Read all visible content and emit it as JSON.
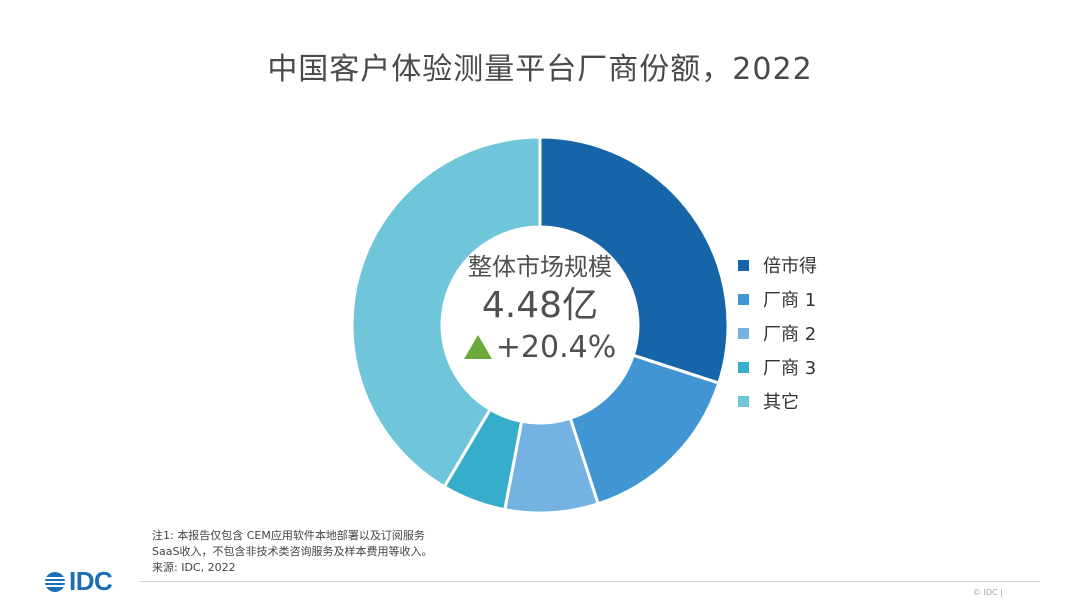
{
  "title": "中国客户体验测量平台厂商份额，2022",
  "center": {
    "label": "整体市场规模",
    "value": "4.48亿",
    "growth": "+20.4%",
    "growth_color": "#6aab3b"
  },
  "chart_data": {
    "type": "pie",
    "donut": true,
    "title": "中国客户体验测量平台厂商份额，2022",
    "legend_position": "right",
    "series": [
      {
        "name": "倍市得",
        "value": 30.0,
        "color": "#1565a8"
      },
      {
        "name": "厂商 1",
        "value": 15.0,
        "color": "#4295d3"
      },
      {
        "name": "厂商 2",
        "value": 8.0,
        "color": "#74b2e2"
      },
      {
        "name": "厂商 3",
        "value": 5.5,
        "color": "#36aecb"
      },
      {
        "name": "其它",
        "value": 41.5,
        "color": "#6fc6da"
      }
    ]
  },
  "legend": {
    "items": [
      "倍市得",
      "厂商 1",
      "厂商 2",
      "厂商 3",
      "其它"
    ]
  },
  "footnote": {
    "line1": "注1: 本报告仅包含 CEM应用软件本地部署以及订阅服务",
    "line2": "SaaS收入，不包含非技术类咨询服务及样本费用等收入。",
    "line3": "来源: IDC, 2022"
  },
  "logo": {
    "text": "IDC",
    "icon": "idc-logo-icon"
  },
  "copyright": "© IDC |"
}
